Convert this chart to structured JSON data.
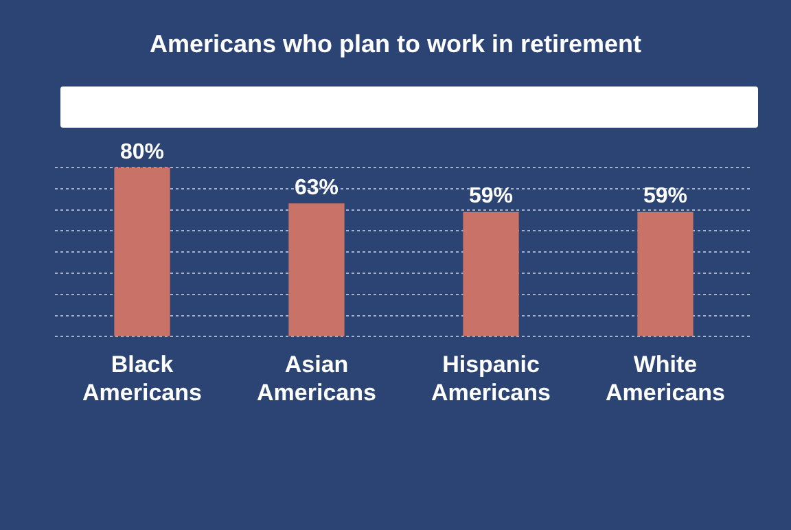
{
  "chart_data": {
    "type": "bar",
    "title": "Americans who plan to work in retirement",
    "categories": [
      "Black Americans",
      "Asian Americans",
      "Hispanic Americans",
      "White Americans"
    ],
    "values": [
      80,
      63,
      59,
      59
    ],
    "color": "#c97268",
    "value_labels": [
      "80%",
      "63%",
      "59%",
      "59%"
    ],
    "grid": "y",
    "tick_labels": "x"
  }
}
